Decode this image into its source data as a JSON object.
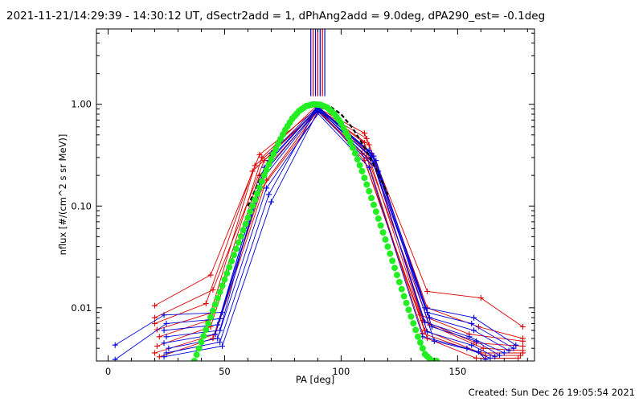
{
  "chart_data": {
    "type": "line",
    "title": "2021-11-21/14:29:39 - 14:30:12 UT, dSectr2add = 1, dPhAng2add = 9.0deg, dPA290_est= -0.1deg",
    "footer": "Created: Sun Dec 26 19:05:54 2021",
    "xlabel": "PA [deg]",
    "ylabel": "nflux [#/(cm^2 s sr MeV)]",
    "xlim": [
      -5,
      183
    ],
    "ylim": [
      0.003,
      5.5
    ],
    "yscale": "log",
    "xticks": [
      0,
      50,
      100,
      150
    ],
    "xtick_labels": [
      "0",
      "50",
      "100",
      "150"
    ],
    "yticks": [
      0.01,
      0.1,
      1.0
    ],
    "ytick_labels": [
      "0.01",
      "0.10",
      "1.00"
    ],
    "grid": false,
    "legend": "none",
    "colors": {
      "red_series": "#dd0000",
      "blue_series": "#0000dd",
      "fit_curve": "#22ee22",
      "reference_curve": "#000000"
    },
    "fit_curve": {
      "name": "",
      "x": [
        37,
        40,
        43,
        46,
        49,
        52,
        55,
        58,
        61,
        64,
        67,
        70,
        73,
        76,
        79,
        82,
        85,
        88,
        91,
        94,
        97,
        100,
        103,
        106,
        109,
        112,
        115,
        118,
        121,
        124,
        127,
        130,
        133,
        136,
        139,
        141
      ],
      "y": [
        0.003,
        0.0046,
        0.007,
        0.0108,
        0.0165,
        0.025,
        0.038,
        0.058,
        0.088,
        0.132,
        0.2,
        0.29,
        0.41,
        0.56,
        0.72,
        0.86,
        0.96,
        1.0,
        0.99,
        0.93,
        0.81,
        0.65,
        0.48,
        0.33,
        0.22,
        0.14,
        0.088,
        0.055,
        0.034,
        0.021,
        0.013,
        0.0082,
        0.0052,
        0.0035,
        0.003,
        0.003
      ]
    },
    "reference_curve": {
      "name": "",
      "x": [
        60,
        65,
        70,
        75,
        80,
        85,
        88,
        91,
        95,
        100,
        105,
        110,
        115,
        120
      ],
      "y": [
        0.1,
        0.18,
        0.32,
        0.52,
        0.75,
        0.93,
        0.98,
        1.0,
        0.96,
        0.8,
        0.58,
        0.38,
        0.23,
        0.13
      ]
    },
    "spike_lines": {
      "x_positions": [
        87,
        88,
        89,
        90,
        91,
        92,
        93
      ],
      "y_from": 1.2,
      "y_to": 5.5
    },
    "series": [
      {
        "color": "red",
        "x": [
          20,
          44,
          65,
          90,
          110,
          137,
          160,
          178
        ],
        "y": [
          0.0105,
          0.021,
          0.32,
          0.92,
          0.52,
          0.0145,
          0.0125,
          0.0065
        ]
      },
      {
        "color": "red",
        "x": [
          20,
          45,
          67,
          90,
          111,
          137,
          159,
          178
        ],
        "y": [
          0.008,
          0.015,
          0.28,
          0.9,
          0.46,
          0.01,
          0.0065,
          0.005
        ]
      },
      {
        "color": "red",
        "x": [
          20,
          42,
          62,
          90,
          110,
          134,
          155,
          178
        ],
        "y": [
          0.007,
          0.011,
          0.22,
          0.88,
          0.42,
          0.0085,
          0.0055,
          0.0047
        ]
      },
      {
        "color": "red",
        "x": [
          21,
          45,
          66,
          89,
          112,
          135,
          158,
          178
        ],
        "y": [
          0.0061,
          0.009,
          0.3,
          0.94,
          0.4,
          0.0075,
          0.0045,
          0.0042
        ]
      },
      {
        "color": "red",
        "x": [
          22,
          43,
          63,
          91,
          110,
          138,
          161,
          178
        ],
        "y": [
          0.0052,
          0.0075,
          0.25,
          0.9,
          0.36,
          0.0068,
          0.004,
          0.0038
        ]
      },
      {
        "color": "red",
        "x": [
          21,
          44,
          65,
          90,
          109,
          136,
          160,
          178
        ],
        "y": [
          0.0042,
          0.0065,
          0.2,
          0.87,
          0.33,
          0.006,
          0.0036,
          0.0036
        ]
      },
      {
        "color": "red",
        "x": [
          20,
          46,
          68,
          90,
          111,
          135,
          162,
          177
        ],
        "y": [
          0.0036,
          0.0055,
          0.18,
          0.86,
          0.3,
          0.0056,
          0.0034,
          0.0034
        ]
      },
      {
        "color": "red",
        "x": [
          22,
          45,
          66,
          91,
          110,
          137,
          158,
          176
        ],
        "y": [
          0.0033,
          0.005,
          0.15,
          0.85,
          0.28,
          0.005,
          0.0032,
          0.0032
        ]
      },
      {
        "color": "blue",
        "x": [
          3,
          24,
          49,
          70,
          90,
          112,
          136,
          157,
          175
        ],
        "y": [
          0.0043,
          0.0085,
          0.009,
          0.33,
          0.95,
          0.35,
          0.01,
          0.008,
          0.0043
        ]
      },
      {
        "color": "blue",
        "x": [
          3,
          25,
          48,
          69,
          90,
          113,
          137,
          156,
          174
        ],
        "y": [
          0.0031,
          0.007,
          0.0078,
          0.28,
          0.93,
          0.33,
          0.009,
          0.007,
          0.004
        ]
      },
      {
        "color": "blue",
        "x": [
          24,
          47,
          67,
          90,
          114,
          138,
          157,
          172
        ],
        "y": [
          0.006,
          0.0068,
          0.24,
          0.92,
          0.31,
          0.008,
          0.006,
          0.0038
        ]
      },
      {
        "color": "blue",
        "x": [
          25,
          48,
          66,
          90,
          113,
          136,
          155,
          170
        ],
        "y": [
          0.0052,
          0.006,
          0.2,
          0.9,
          0.3,
          0.0072,
          0.0052,
          0.0036
        ]
      },
      {
        "color": "blue",
        "x": [
          24,
          46,
          65,
          90,
          115,
          139,
          158,
          168
        ],
        "y": [
          0.0045,
          0.0055,
          0.17,
          0.88,
          0.28,
          0.0065,
          0.0047,
          0.0034
        ]
      },
      {
        "color": "blue",
        "x": [
          26,
          47,
          68,
          91,
          114,
          137,
          156,
          166
        ],
        "y": [
          0.004,
          0.005,
          0.15,
          0.87,
          0.26,
          0.0058,
          0.0043,
          0.0033
        ]
      },
      {
        "color": "blue",
        "x": [
          25,
          48,
          69,
          89,
          112,
          135,
          154,
          164
        ],
        "y": [
          0.0036,
          0.0046,
          0.13,
          0.86,
          0.24,
          0.0052,
          0.004,
          0.0032
        ]
      },
      {
        "color": "blue",
        "x": [
          24,
          49,
          70,
          90,
          116,
          140,
          159,
          162
        ],
        "y": [
          0.0033,
          0.0042,
          0.11,
          0.85,
          0.22,
          0.0047,
          0.0037,
          0.0031
        ]
      }
    ]
  }
}
